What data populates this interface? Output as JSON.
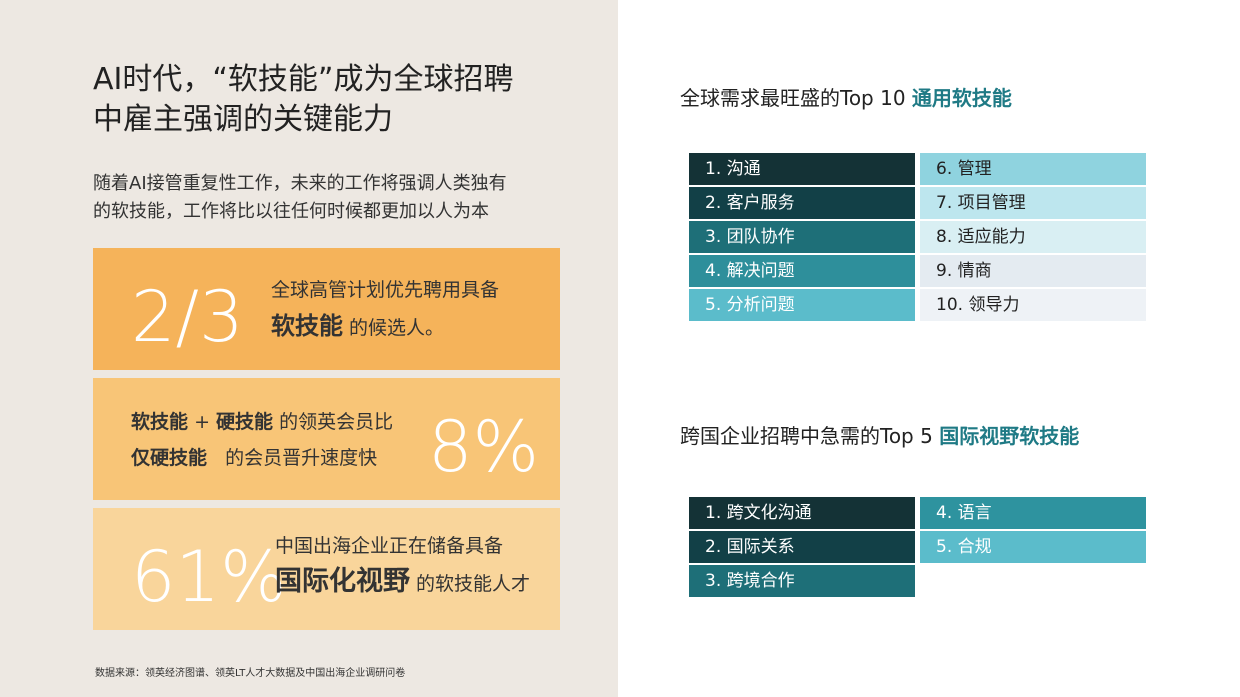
{
  "left": {
    "title": [
      "AI时代，“软技能”成为全球招聘",
      "中雇主强调的关键能力"
    ],
    "subtitle": [
      "随着AI接管重复性工作，未来的工作将强调人类独有",
      "的软技能，工作将比以往任何时候都更加以人为本"
    ],
    "stats": [
      {
        "figure": "2/3",
        "lines": [
          [
            "全球高管计划优先聘用具备"
          ],
          [
            "软技能",
            "的候选人。"
          ]
        ]
      },
      {
        "figure": "8%",
        "lines": [
          [
            "软技能",
            "+",
            "硬技能",
            "的领英会员比"
          ],
          [
            "仅硬技能",
            "的会员晋升速度快"
          ]
        ]
      },
      {
        "figure": "61%",
        "lines": [
          [
            "中国出海企业正在储备具备"
          ],
          [
            "国际化视野",
            "的软技能人才"
          ]
        ]
      }
    ],
    "source": "数据来源：领英经济图谱、领英LT人才大数据及中国出海企业调研问卷"
  },
  "right": {
    "top10": {
      "heading": "全球需求最旺盛的Top 10",
      "highlight": "通用软技能",
      "items": [
        "1. 沟通",
        "2. 客户服务",
        "3. 团队协作",
        "4. 解决问题",
        "5. 分析问题",
        "6. 管理",
        "7. 项目管理",
        "8. 适应能力",
        "9. 情商",
        "10. 领导力"
      ]
    },
    "top5": {
      "heading": "跨国企业招聘中急需的Top 5",
      "highlight": "国际视野软技能",
      "items": [
        "1. 跨文化沟通",
        "2. 国际关系",
        "3. 跨境合作",
        "4. 语言",
        "5. 合规"
      ]
    }
  }
}
